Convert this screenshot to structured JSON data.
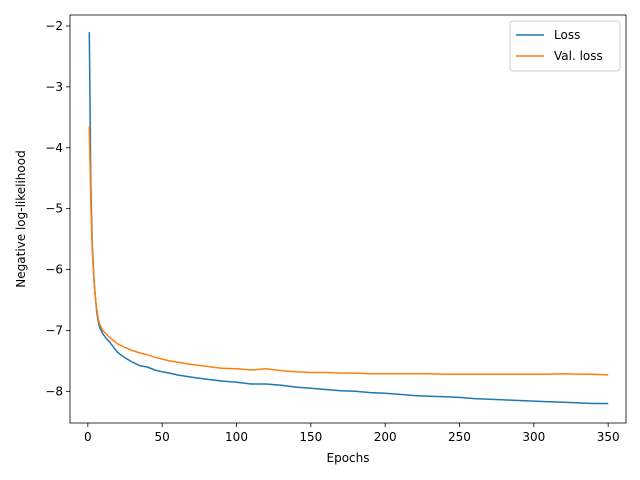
{
  "chart_data": {
    "type": "line",
    "title": "",
    "xlabel": "Epochs",
    "ylabel": "Negative log-likelihood",
    "xlim": [
      -12,
      362
    ],
    "ylim": [
      -8.52,
      -1.82
    ],
    "xticks": [
      0,
      50,
      100,
      150,
      200,
      250,
      300,
      350
    ],
    "yticks": [
      -8,
      -7,
      -6,
      -5,
      -4,
      -3,
      -2
    ],
    "xtick_labels": [
      "0",
      "50",
      "100",
      "150",
      "200",
      "250",
      "300",
      "350"
    ],
    "ytick_labels": [
      "−8",
      "−7",
      "−6",
      "−5",
      "−4",
      "−3",
      "−2"
    ],
    "grid": false,
    "legend_position": "top-right",
    "series": [
      {
        "name": "Loss",
        "color": "#1f77b4",
        "x": [
          1,
          2,
          3,
          4,
          5,
          6,
          7,
          8,
          10,
          12,
          15,
          18,
          20,
          25,
          30,
          35,
          40,
          45,
          50,
          55,
          60,
          70,
          80,
          90,
          100,
          110,
          120,
          130,
          140,
          150,
          160,
          170,
          180,
          190,
          200,
          210,
          220,
          230,
          240,
          250,
          260,
          270,
          280,
          290,
          300,
          310,
          320,
          330,
          340,
          350
        ],
        "y": [
          -2.1,
          -4.6,
          -5.6,
          -6.1,
          -6.45,
          -6.7,
          -6.85,
          -6.95,
          -7.05,
          -7.12,
          -7.2,
          -7.3,
          -7.36,
          -7.45,
          -7.52,
          -7.58,
          -7.6,
          -7.65,
          -7.68,
          -7.7,
          -7.73,
          -7.77,
          -7.8,
          -7.83,
          -7.85,
          -7.88,
          -7.88,
          -7.9,
          -7.93,
          -7.95,
          -7.97,
          -7.99,
          -8.0,
          -8.02,
          -8.03,
          -8.05,
          -8.07,
          -8.08,
          -8.09,
          -8.1,
          -8.12,
          -8.13,
          -8.14,
          -8.15,
          -8.16,
          -8.17,
          -8.18,
          -8.19,
          -8.2,
          -8.2
        ]
      },
      {
        "name": "Val. loss",
        "color": "#ff7f0e",
        "x": [
          1,
          2,
          3,
          4,
          5,
          6,
          7,
          8,
          10,
          12,
          15,
          18,
          20,
          25,
          30,
          35,
          40,
          45,
          50,
          55,
          60,
          70,
          80,
          90,
          100,
          110,
          120,
          130,
          140,
          150,
          160,
          170,
          180,
          190,
          200,
          210,
          220,
          230,
          240,
          250,
          260,
          270,
          280,
          290,
          300,
          310,
          320,
          330,
          340,
          350
        ],
        "y": [
          -3.65,
          -4.9,
          -5.7,
          -6.15,
          -6.45,
          -6.65,
          -6.8,
          -6.9,
          -7.0,
          -7.05,
          -7.12,
          -7.18,
          -7.22,
          -7.28,
          -7.33,
          -7.37,
          -7.4,
          -7.44,
          -7.47,
          -7.5,
          -7.52,
          -7.56,
          -7.59,
          -7.62,
          -7.63,
          -7.65,
          -7.63,
          -7.66,
          -7.68,
          -7.69,
          -7.69,
          -7.7,
          -7.7,
          -7.71,
          -7.71,
          -7.71,
          -7.71,
          -7.71,
          -7.72,
          -7.72,
          -7.72,
          -7.72,
          -7.72,
          -7.72,
          -7.72,
          -7.72,
          -7.71,
          -7.72,
          -7.72,
          -7.73
        ]
      }
    ]
  }
}
